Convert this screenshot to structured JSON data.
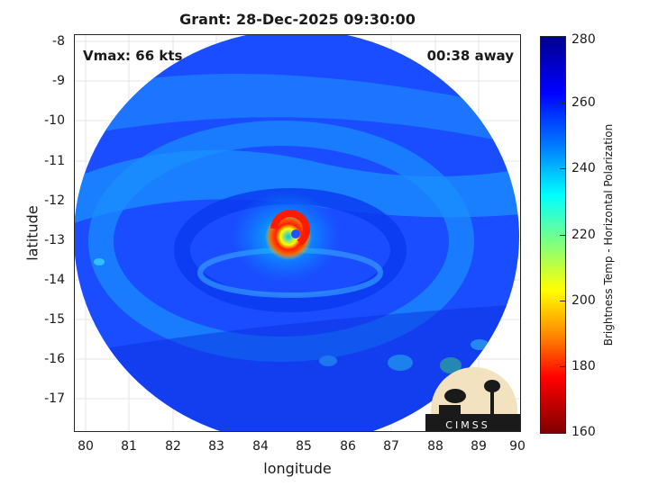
{
  "title": "Grant: 28-Dec-2025 09:30:00",
  "annotations": {
    "vmax": "Vmax: 66 kts",
    "time_away": "00:38 away"
  },
  "axes": {
    "xlabel": "longitude",
    "ylabel": "latitude",
    "xticks": [
      "80",
      "81",
      "82",
      "83",
      "84",
      "85",
      "86",
      "87",
      "88",
      "89",
      "90"
    ],
    "yticks": [
      "-8",
      "-9",
      "-10",
      "-11",
      "-12",
      "-13",
      "-14",
      "-15",
      "-16",
      "-17"
    ]
  },
  "colorbar": {
    "label": "Brightness Temp - Horizontal Polarization",
    "ticks": [
      "280",
      "260",
      "240",
      "220",
      "200",
      "180",
      "160"
    ]
  },
  "logo": {
    "text": "CIMSS"
  }
}
